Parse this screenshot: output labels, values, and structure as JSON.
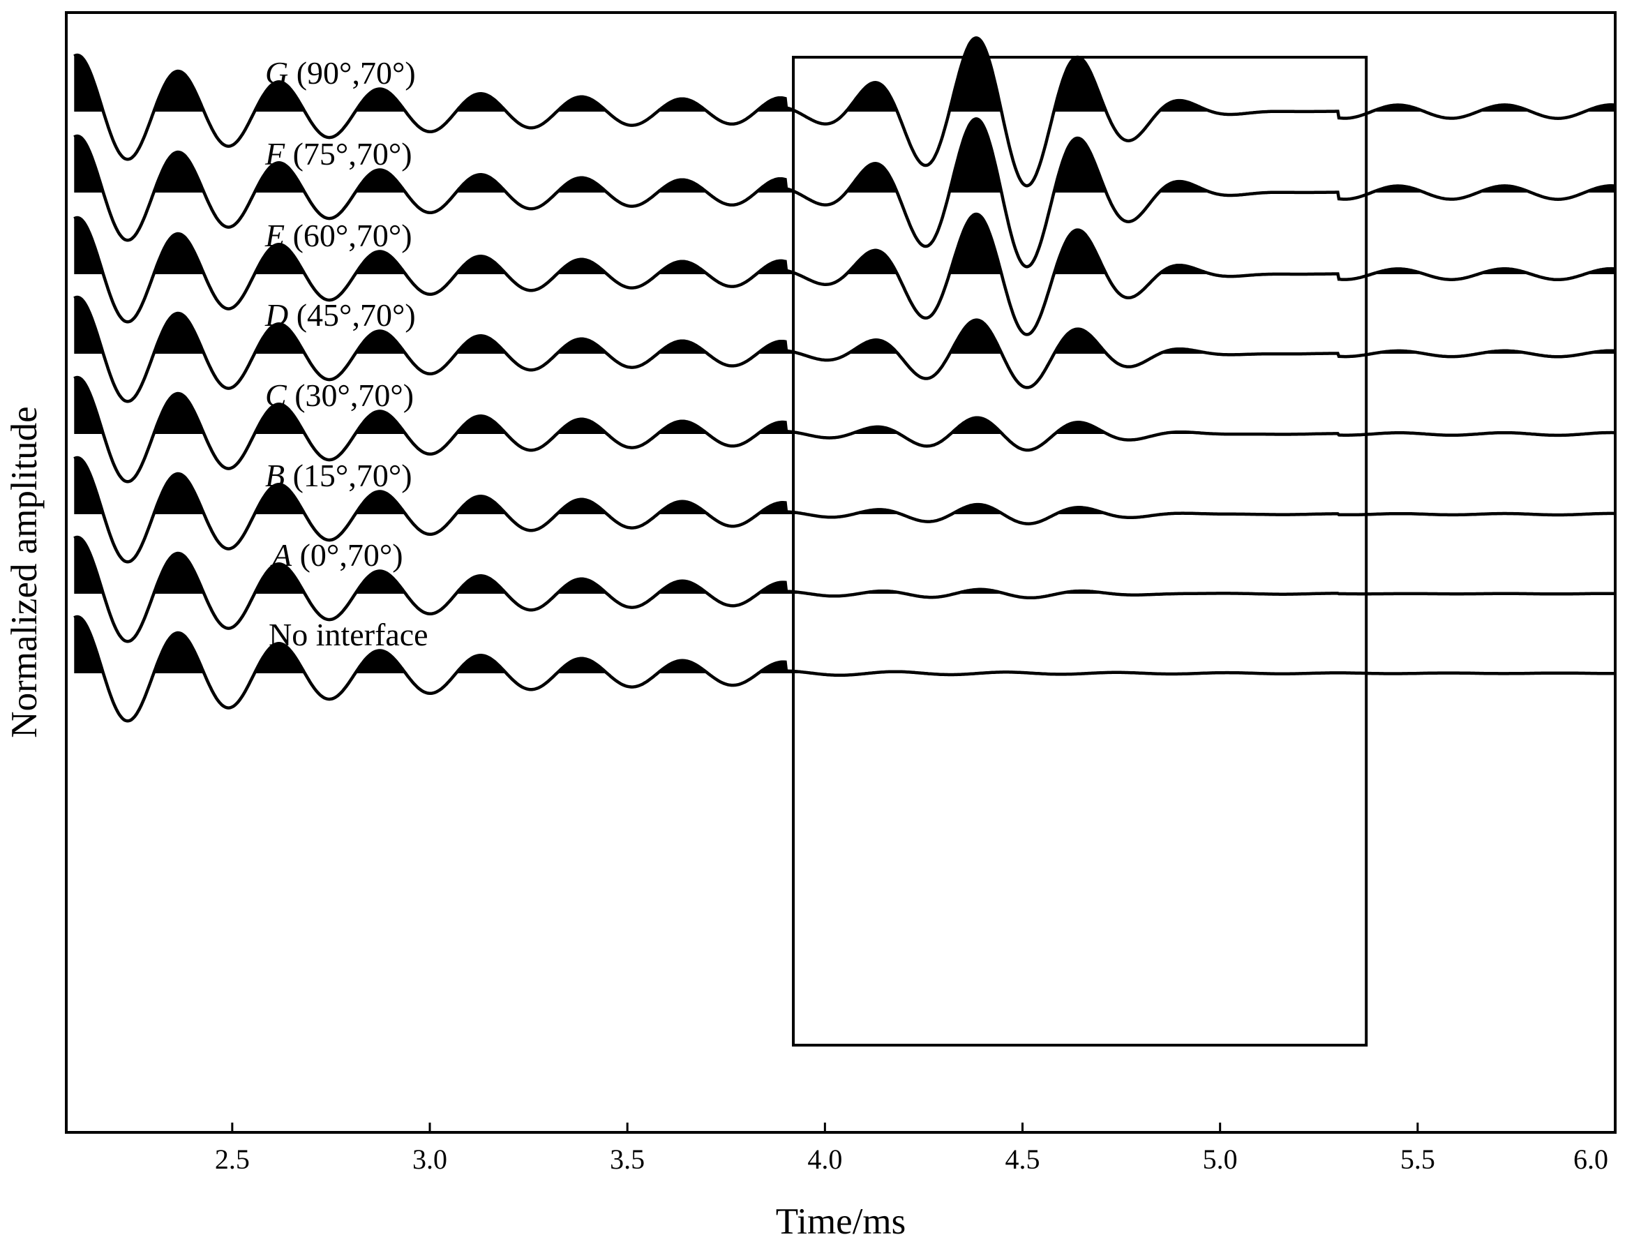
{
  "chart_data": {
    "type": "line",
    "subtype": "seismic-wiggle-traces",
    "xlabel": "Time/ms",
    "ylabel": "Normalized amplitude",
    "xlim": [
      2.08,
      6.0
    ],
    "xticks": [
      "2.5",
      "3.0",
      "3.5",
      "4.0",
      "4.5",
      "5.0",
      "5.5",
      "6.0"
    ],
    "xtick_values": [
      2.5,
      3.0,
      3.5,
      4.0,
      4.5,
      5.0,
      5.5,
      6.0
    ],
    "grid": false,
    "fill": "positive lobes filled black",
    "highlight_box": {
      "x_range": [
        3.92,
        5.37
      ]
    },
    "series": [
      {
        "name": "G (90°,70°)",
        "letter": "G",
        "angles": "(90°,70°)",
        "reflection_amp": 1.35
      },
      {
        "name": "F (75°,70°)",
        "letter": "F",
        "angles": "(75°,70°)",
        "reflection_amp": 1.35
      },
      {
        "name": "E (60°,70°)",
        "letter": "E",
        "angles": "(60°,70°)",
        "reflection_amp": 1.1
      },
      {
        "name": "D (45°,70°)",
        "letter": "D",
        "angles": "(45°,70°)",
        "reflection_amp": 0.62
      },
      {
        "name": "C (30°,70°)",
        "letter": "C",
        "angles": "(30°,70°)",
        "reflection_amp": 0.3
      },
      {
        "name": "B (15°,70°)",
        "letter": "B",
        "angles": "(15°,70°)",
        "reflection_amp": 0.18
      },
      {
        "name": "A (0°,70°)",
        "letter": "A",
        "angles": "(0°,70°)",
        "reflection_amp": 0.08
      },
      {
        "name": "No interface",
        "letter": "",
        "angles": "No interface",
        "reflection_amp": 0.0
      }
    ]
  }
}
